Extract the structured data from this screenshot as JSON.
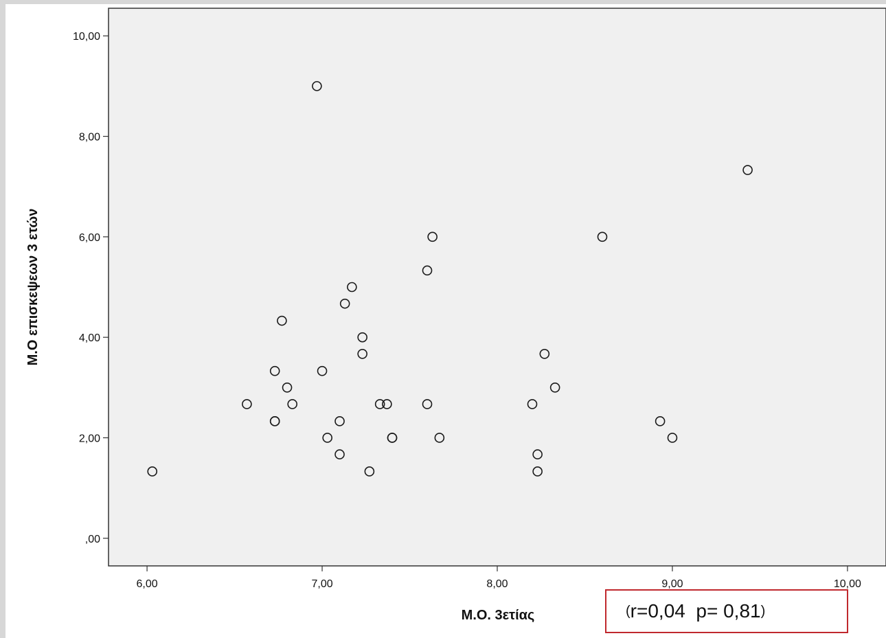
{
  "chart_data": {
    "type": "scatter",
    "xlabel": "Μ.Ο. 3ετίας",
    "ylabel": "Μ.Ο επισκεψεων 3 ετών",
    "xlim": [
      5.78,
      10.22
    ],
    "ylim": [
      -0.55,
      10.55
    ],
    "x_ticks": [
      {
        "value": 6,
        "label": "6,00"
      },
      {
        "value": 7,
        "label": "7,00"
      },
      {
        "value": 8,
        "label": "8,00"
      },
      {
        "value": 9,
        "label": "9,00"
      },
      {
        "value": 10,
        "label": "10,00"
      }
    ],
    "y_ticks": [
      {
        "value": 0,
        "label": ",00"
      },
      {
        "value": 2,
        "label": "2,00"
      },
      {
        "value": 4,
        "label": "4,00"
      },
      {
        "value": 6,
        "label": "6,00"
      },
      {
        "value": 8,
        "label": "8,00"
      },
      {
        "value": 10,
        "label": "10,00"
      }
    ],
    "grid": false,
    "marker": "open-circle",
    "points": [
      {
        "x": 6.03,
        "y": 1.33
      },
      {
        "x": 6.57,
        "y": 2.67
      },
      {
        "x": 6.73,
        "y": 3.33
      },
      {
        "x": 6.73,
        "y": 2.33
      },
      {
        "x": 6.73,
        "y": 2.33
      },
      {
        "x": 6.77,
        "y": 4.33
      },
      {
        "x": 6.8,
        "y": 3.0
      },
      {
        "x": 6.83,
        "y": 2.67
      },
      {
        "x": 6.97,
        "y": 9.0
      },
      {
        "x": 7.0,
        "y": 3.33
      },
      {
        "x": 7.03,
        "y": 2.0
      },
      {
        "x": 7.1,
        "y": 2.33
      },
      {
        "x": 7.1,
        "y": 1.67
      },
      {
        "x": 7.13,
        "y": 4.67
      },
      {
        "x": 7.17,
        "y": 5.0
      },
      {
        "x": 7.23,
        "y": 4.0
      },
      {
        "x": 7.23,
        "y": 3.67
      },
      {
        "x": 7.27,
        "y": 1.33
      },
      {
        "x": 7.33,
        "y": 2.67
      },
      {
        "x": 7.37,
        "y": 2.67
      },
      {
        "x": 7.4,
        "y": 2.0
      },
      {
        "x": 7.4,
        "y": 2.0
      },
      {
        "x": 7.6,
        "y": 5.33
      },
      {
        "x": 7.6,
        "y": 2.67
      },
      {
        "x": 7.63,
        "y": 6.0
      },
      {
        "x": 7.67,
        "y": 2.0
      },
      {
        "x": 8.2,
        "y": 2.67
      },
      {
        "x": 8.23,
        "y": 1.67
      },
      {
        "x": 8.23,
        "y": 1.33
      },
      {
        "x": 8.27,
        "y": 3.67
      },
      {
        "x": 8.33,
        "y": 3.0
      },
      {
        "x": 8.6,
        "y": 6.0
      },
      {
        "x": 8.93,
        "y": 2.33
      },
      {
        "x": 9.0,
        "y": 2.0
      },
      {
        "x": 9.43,
        "y": 7.33
      }
    ],
    "annotation": {
      "open": "(",
      "text": "r=0,04  p= 0,81",
      "close": ")",
      "border_color": "#c0282d"
    },
    "colors": {
      "plot_background": "#f0f0f0",
      "marker_stroke": "#1a1a1a",
      "axis": "#333333"
    }
  }
}
